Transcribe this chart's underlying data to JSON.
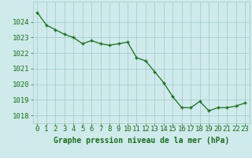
{
  "x": [
    0,
    1,
    2,
    3,
    4,
    5,
    6,
    7,
    8,
    9,
    10,
    11,
    12,
    13,
    14,
    15,
    16,
    17,
    18,
    19,
    20,
    21,
    22,
    23
  ],
  "y": [
    1024.6,
    1023.8,
    1023.5,
    1023.2,
    1023.0,
    1022.6,
    1022.8,
    1022.6,
    1022.5,
    1022.6,
    1022.7,
    1021.7,
    1021.5,
    1020.8,
    1020.1,
    1019.2,
    1018.5,
    1018.5,
    1018.9,
    1018.3,
    1018.5,
    1018.5,
    1018.6,
    1018.8
  ],
  "line_color": "#1a6e1a",
  "marker_color": "#1a6e1a",
  "bg_color": "#ceeaea",
  "grid_color": "#a0c8c8",
  "xlabel": "Graphe pression niveau de la mer (hPa)",
  "xlabel_color": "#1a6e1a",
  "tick_color": "#1a6e1a",
  "ylim": [
    1017.5,
    1025.3
  ],
  "yticks": [
    1018,
    1019,
    1020,
    1021,
    1022,
    1023,
    1024
  ],
  "xticks": [
    0,
    1,
    2,
    3,
    4,
    5,
    6,
    7,
    8,
    9,
    10,
    11,
    12,
    13,
    14,
    15,
    16,
    17,
    18,
    19,
    20,
    21,
    22,
    23
  ],
  "xtick_labels": [
    "0",
    "1",
    "2",
    "3",
    "4",
    "5",
    "6",
    "7",
    "8",
    "9",
    "10",
    "11",
    "12",
    "13",
    "14",
    "15",
    "16",
    "17",
    "18",
    "19",
    "20",
    "21",
    "22",
    "23"
  ],
  "xlabel_fontsize": 7,
  "axis_fontsize": 6.5
}
